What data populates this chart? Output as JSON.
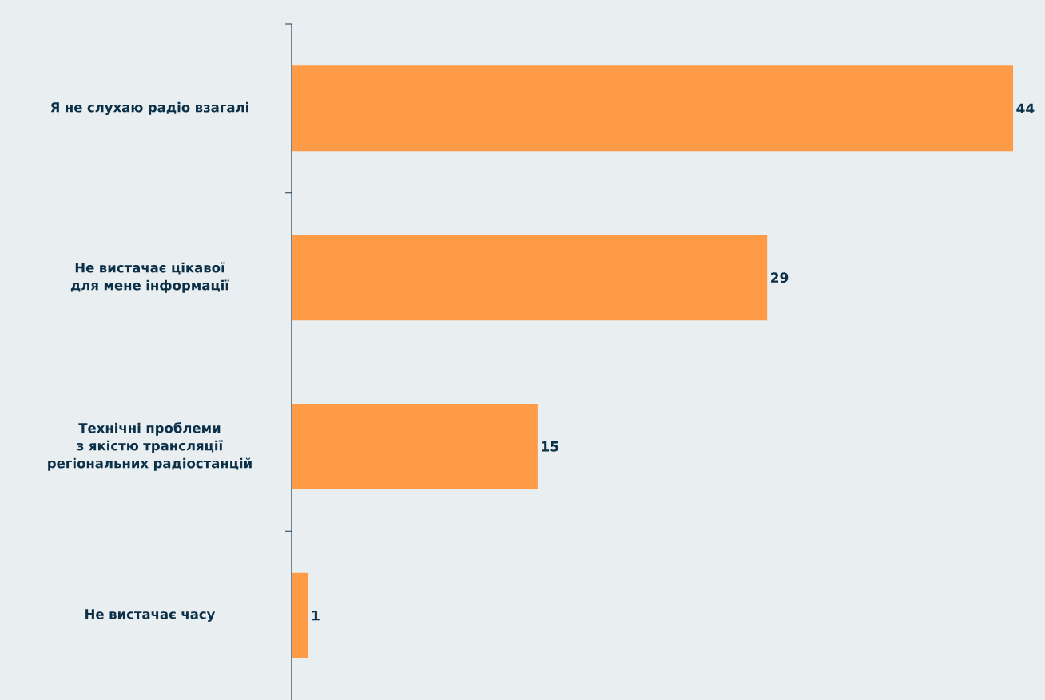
{
  "chart_data": {
    "type": "bar",
    "orientation": "horizontal",
    "categories": [
      "Я не слухаю радіо взагалі",
      "Не вистачає цікавої для мене інформації",
      "Технічні проблеми з якістю трансляції регіональних радіостанцій",
      "Не вистачає часу"
    ],
    "values": [
      44,
      29,
      15,
      1
    ],
    "color": "#ff9a47",
    "xlim": [
      0,
      44
    ],
    "tick_labels": "y",
    "data_labels": true
  }
}
